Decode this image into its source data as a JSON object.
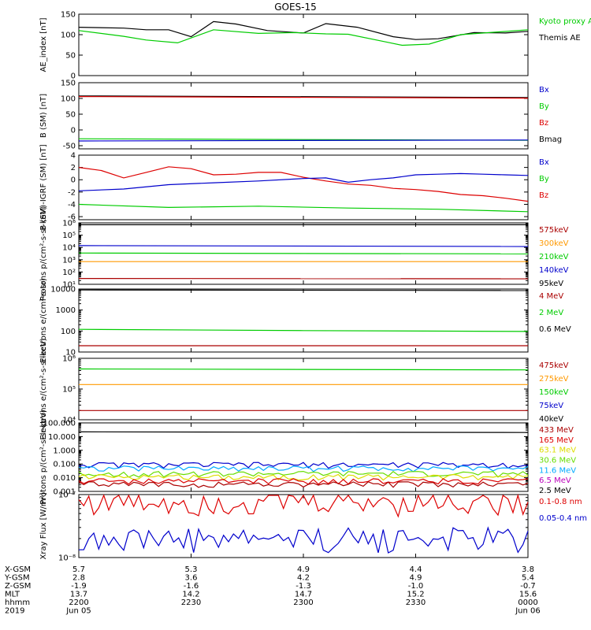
{
  "title": "GOES-15",
  "colors": {
    "black": "#000000",
    "green": "#00cc00",
    "red": "#dd0000",
    "blue": "#0000cc",
    "darkred": "#aa0000",
    "orange": "#ff9900",
    "deepskyblue": "#00aaff",
    "magenta": "#bb00bb",
    "yellow": "#dddd00",
    "greenyellow": "#66dd00"
  },
  "chart_data": [
    {
      "type": "line",
      "ylabel": "AE_index [nT]",
      "ylim": [
        0,
        150
      ],
      "scale": "linear",
      "yticks": [
        0,
        50,
        100,
        150
      ],
      "ytick_labels": [
        "0",
        "50",
        "100",
        "150"
      ],
      "legend": [
        {
          "label": "Kyoto proxy AE",
          "color": "green"
        },
        {
          "label": "Themis AE",
          "color": "black"
        }
      ],
      "series": [
        {
          "name": "Themis AE",
          "color": "black",
          "x": [
            0,
            10,
            15,
            20,
            25,
            30,
            35,
            42,
            50,
            55,
            62,
            70,
            75,
            80,
            88,
            95,
            100
          ],
          "y": [
            118,
            116,
            112,
            112,
            95,
            132,
            126,
            110,
            104,
            127,
            118,
            95,
            88,
            90,
            105,
            104,
            108
          ]
        },
        {
          "name": "Kyoto proxy AE",
          "color": "green",
          "x": [
            0,
            10,
            15,
            22,
            30,
            40,
            48,
            55,
            60,
            68,
            72,
            78,
            85,
            100
          ],
          "y": [
            110,
            96,
            87,
            80,
            112,
            103,
            105,
            102,
            101,
            83,
            74,
            77,
            100,
            112
          ]
        }
      ]
    },
    {
      "type": "line",
      "ylabel": "B (SM) [nT]",
      "ylim": [
        -60,
        150
      ],
      "scale": "linear",
      "yticks": [
        -50,
        0,
        50,
        100,
        150
      ],
      "ytick_labels": [
        "-50",
        "0",
        "50",
        "100",
        "150"
      ],
      "legend": [
        {
          "label": "Bx",
          "color": "blue"
        },
        {
          "label": "By",
          "color": "green"
        },
        {
          "label": "Bz",
          "color": "red"
        },
        {
          "label": "Bmag",
          "color": "black"
        }
      ],
      "series": [
        {
          "name": "Bmag",
          "color": "black",
          "x": [
            0,
            100
          ],
          "y": [
            108,
            103
          ]
        },
        {
          "name": "Bz",
          "color": "red",
          "x": [
            0,
            100
          ],
          "y": [
            106,
            101
          ]
        },
        {
          "name": "By",
          "color": "green",
          "x": [
            0,
            100
          ],
          "y": [
            -28,
            -33
          ]
        },
        {
          "name": "Bx",
          "color": "blue",
          "x": [
            0,
            100
          ],
          "y": [
            -35,
            -32
          ]
        }
      ]
    },
    {
      "type": "line",
      "ylabel": "B (SM)-IGRF (SM) [nT]",
      "ylim": [
        -6.5,
        4
      ],
      "scale": "linear",
      "yticks": [
        -6,
        -4,
        -2,
        0,
        2,
        4
      ],
      "ytick_labels": [
        "-6",
        "-4",
        "-2",
        "0",
        "2",
        "4"
      ],
      "legend": [
        {
          "label": "Bx",
          "color": "blue"
        },
        {
          "label": "By",
          "color": "green"
        },
        {
          "label": "Bz",
          "color": "red"
        }
      ],
      "series": [
        {
          "name": "Bz",
          "color": "red",
          "x": [
            0,
            5,
            10,
            15,
            20,
            25,
            30,
            35,
            40,
            45,
            50,
            55,
            60,
            65,
            70,
            75,
            80,
            85,
            90,
            95,
            100
          ],
          "y": [
            2,
            1.5,
            0.3,
            1.2,
            2.1,
            1.8,
            0.8,
            0.9,
            1.2,
            1.2,
            0.4,
            -0.2,
            -0.7,
            -0.9,
            -1.4,
            -1.6,
            -1.9,
            -2.4,
            -2.6,
            -3,
            -3.5
          ]
        },
        {
          "name": "Bx",
          "color": "blue",
          "x": [
            0,
            10,
            20,
            30,
            40,
            50,
            55,
            60,
            65,
            70,
            75,
            80,
            85,
            90,
            95,
            100
          ],
          "y": [
            -1.8,
            -1.5,
            -0.8,
            -0.5,
            -0.2,
            0.2,
            0.3,
            -0.4,
            0,
            0.3,
            0.8,
            0.9,
            1,
            0.9,
            0.8,
            0.7
          ]
        },
        {
          "name": "By",
          "color": "green",
          "x": [
            0,
            20,
            40,
            60,
            80,
            100
          ],
          "y": [
            -4,
            -4.5,
            -4.3,
            -4.6,
            -4.8,
            -5.2
          ]
        }
      ]
    },
    {
      "type": "line",
      "ylabel": "Protons p/(cm²-s-sr-keV)",
      "ylim": [
        10,
        1000000
      ],
      "scale": "log",
      "yticks": [
        10,
        100,
        1000,
        10000,
        100000,
        1000000
      ],
      "ytick_labels": [
        "10¹",
        "10²",
        "10³",
        "10⁴",
        "10⁵",
        "10⁶"
      ],
      "legend": [
        {
          "label": "575keV",
          "color": "darkred"
        },
        {
          "label": "300keV",
          "color": "orange"
        },
        {
          "label": "210keV",
          "color": "green"
        },
        {
          "label": "140keV",
          "color": "blue"
        },
        {
          "label": "95keV",
          "color": "black"
        }
      ],
      "series": [
        {
          "name": "95keV",
          "color": "black",
          "x": [
            0,
            100
          ],
          "y": [
            700000,
            700000
          ]
        },
        {
          "name": "140keV",
          "color": "blue",
          "x": [
            0,
            100
          ],
          "y": [
            14000,
            12000
          ]
        },
        {
          "name": "210keV",
          "color": "green",
          "x": [
            0,
            100
          ],
          "y": [
            3500,
            3000
          ]
        },
        {
          "name": "300keV",
          "color": "orange",
          "x": [
            0,
            100
          ],
          "y": [
            700,
            700
          ]
        },
        {
          "name": "575keV",
          "color": "darkred",
          "x": [
            0,
            100
          ],
          "y": [
            30,
            28
          ]
        }
      ]
    },
    {
      "type": "line",
      "ylabel": "Electrons e/(cm²-s-sr)",
      "ylim": [
        10,
        10000
      ],
      "scale": "log",
      "yticks": [
        10,
        100,
        1000,
        10000
      ],
      "ytick_labels": [
        "10",
        "100",
        "1000",
        "10000"
      ],
      "legend": [
        {
          "label": "4 MeV",
          "color": "darkred"
        },
        {
          "label": "2 MeV",
          "color": "green"
        },
        {
          "label": "0.6 MeV",
          "color": "black"
        }
      ],
      "series": [
        {
          "name": "0.6 MeV",
          "color": "black",
          "x": [
            0,
            100
          ],
          "y": [
            9000,
            8500
          ]
        },
        {
          "name": "2 MeV",
          "color": "green",
          "x": [
            0,
            50,
            100
          ],
          "y": [
            120,
            105,
            95
          ]
        },
        {
          "name": "4 MeV",
          "color": "darkred",
          "x": [
            0,
            50,
            100
          ],
          "y": [
            20,
            20,
            20
          ]
        }
      ]
    },
    {
      "type": "line",
      "ylabel": "Electrons e/(cm²-s-sr-keV)",
      "ylim": [
        10000,
        1000000
      ],
      "scale": "log",
      "yticks": [
        10000,
        100000,
        1000000
      ],
      "ytick_labels": [
        "10⁴",
        "10⁵",
        "10⁶"
      ],
      "legend": [
        {
          "label": "475keV",
          "color": "darkred"
        },
        {
          "label": "275keV",
          "color": "orange"
        },
        {
          "label": "150keV",
          "color": "green"
        },
        {
          "label": "75keV",
          "color": "blue"
        },
        {
          "label": "40keV",
          "color": "black"
        }
      ],
      "series": [
        {
          "name": "150keV",
          "color": "green",
          "x": [
            0,
            100
          ],
          "y": [
            450000,
            420000
          ]
        },
        {
          "name": "275keV",
          "color": "orange",
          "x": [
            0,
            100
          ],
          "y": [
            140000,
            140000
          ]
        },
        {
          "name": "475keV",
          "color": "darkred",
          "x": [
            0,
            100
          ],
          "y": [
            20000,
            20000
          ]
        }
      ]
    },
    {
      "type": "line",
      "ylabel": "Protons p/(cm²-s-sr-keV)",
      "ylim": [
        0.001,
        100
      ],
      "scale": "log",
      "yticks": [
        0.001,
        0.01,
        0.1,
        1,
        10,
        100
      ],
      "ytick_labels": [
        "0.001",
        "0.010",
        "0.100",
        "1.000",
        "10.000",
        "100.000"
      ],
      "legend": [
        {
          "label": "433 MeV",
          "color": "darkred"
        },
        {
          "label": "165 MeV",
          "color": "red"
        },
        {
          "label": "63.1 MeV",
          "color": "yellow"
        },
        {
          "label": "30.6 MeV",
          "color": "greenyellow"
        },
        {
          "label": "11.6 MeV",
          "color": "deepskyblue"
        },
        {
          "label": "6.5 MeV",
          "color": "magenta"
        },
        {
          "label": "2.5 MeV",
          "color": "black"
        }
      ],
      "series": [
        {
          "name": "2.5 MeV",
          "color": "black",
          "x": [
            0,
            100
          ],
          "y": [
            22,
            20
          ]
        },
        {
          "name": "6.5 MeV",
          "color": "blue",
          "x": [
            0,
            100
          ],
          "y": [
            0.09,
            0.09
          ],
          "noisy": true
        },
        {
          "name": "11.6 MeV",
          "color": "deepskyblue",
          "x": [
            0,
            100
          ],
          "y": [
            0.05,
            0.05
          ],
          "noisy": true
        },
        {
          "name": "30.6 MeV",
          "color": "greenyellow",
          "x": [
            0,
            100
          ],
          "y": [
            0.02,
            0.02
          ],
          "noisy": true
        },
        {
          "name": "63.1 MeV",
          "color": "yellow",
          "x": [
            0,
            100
          ],
          "y": [
            0.012,
            0.012
          ],
          "noisy": true
        },
        {
          "name": "165 MeV",
          "color": "red",
          "x": [
            0,
            100
          ],
          "y": [
            0.006,
            0.006
          ],
          "noisy": true
        },
        {
          "name": "433 MeV",
          "color": "darkred",
          "x": [
            0,
            100
          ],
          "y": [
            0.0035,
            0.0035
          ],
          "noisy": true
        }
      ]
    },
    {
      "type": "line",
      "ylabel": "Xray Flux [W/m²]",
      "ylim": [
        1e-08,
        1e-07
      ],
      "scale": "log",
      "yticks": [
        1e-08,
        1e-07
      ],
      "ytick_labels": [
        "10⁻⁸",
        "10⁻⁷"
      ],
      "legend": [
        {
          "label": "0.1-0.8 nm",
          "color": "red"
        },
        {
          "label": "0.05-0.4 nm",
          "color": "blue"
        }
      ],
      "series": [
        {
          "name": "0.1-0.8 nm",
          "color": "red",
          "x": [
            0,
            100
          ],
          "y": [
            8e-08,
            8e-08
          ],
          "noisy": true
        },
        {
          "name": "0.05-0.4 nm",
          "color": "blue",
          "x": [
            0,
            100
          ],
          "y": [
            2.05e-08,
            2.05e-08
          ],
          "noisy": true
        }
      ]
    }
  ],
  "orbit_table": {
    "row_labels": [
      "X-GSM",
      "Y-GSM",
      "Z-GSM",
      "MLT",
      "hhmm",
      "2019"
    ],
    "columns": [
      {
        "x": 0,
        "values": [
          "5.7",
          "2.8",
          "-1.9",
          "13.7",
          "2200",
          "Jun 05"
        ]
      },
      {
        "x": 25,
        "values": [
          "5.3",
          "3.6",
          "-1.6",
          "14.2",
          "2230",
          ""
        ]
      },
      {
        "x": 50,
        "values": [
          "4.9",
          "4.2",
          "-1.3",
          "14.7",
          "2300",
          ""
        ]
      },
      {
        "x": 75,
        "values": [
          "4.4",
          "4.9",
          "-1.0",
          "15.2",
          "2330",
          ""
        ]
      },
      {
        "x": 100,
        "values": [
          "3.8",
          "5.4",
          "-0.7",
          "15.6",
          "0000",
          "Jun 06"
        ]
      }
    ]
  }
}
